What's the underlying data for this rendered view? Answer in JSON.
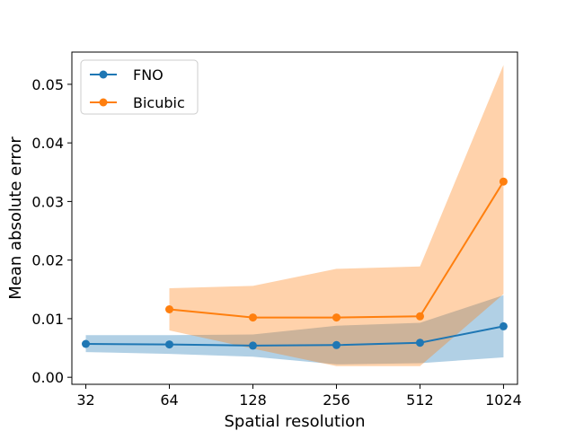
{
  "chart_data": {
    "type": "line",
    "xlabel": "Spatial resolution",
    "ylabel": "Mean absolute error",
    "x_scale": "log2",
    "x_ticks": [
      "32",
      "64",
      "128",
      "256",
      "512",
      "1024"
    ],
    "y_ticks": [
      "0.00",
      "0.01",
      "0.02",
      "0.03",
      "0.04",
      "0.05"
    ],
    "xlim": [
      28.5,
      1150
    ],
    "ylim": [
      -0.0012,
      0.0555
    ],
    "legend_position": "top-left",
    "series": [
      {
        "name": "FNO",
        "color": "#1f77b4",
        "x": [
          32,
          64,
          128,
          256,
          512,
          1024
        ],
        "values": [
          0.0057,
          0.0056,
          0.0054,
          0.0055,
          0.0059,
          0.0087
        ],
        "band_upper": [
          0.0072,
          0.0072,
          0.0073,
          0.0088,
          0.0093,
          0.014
        ],
        "band_lower": [
          0.0043,
          0.004,
          0.0035,
          0.0022,
          0.0024,
          0.0034
        ]
      },
      {
        "name": "Bicubic",
        "color": "#ff7f0e",
        "x": [
          64,
          128,
          256,
          512,
          1024
        ],
        "values": [
          0.0116,
          0.0102,
          0.0102,
          0.0104,
          0.0334
        ],
        "band_upper": [
          0.0152,
          0.0156,
          0.0185,
          0.0189,
          0.0533
        ],
        "band_lower": [
          0.008,
          0.0049,
          0.0019,
          0.0019,
          0.0142
        ]
      }
    ]
  }
}
